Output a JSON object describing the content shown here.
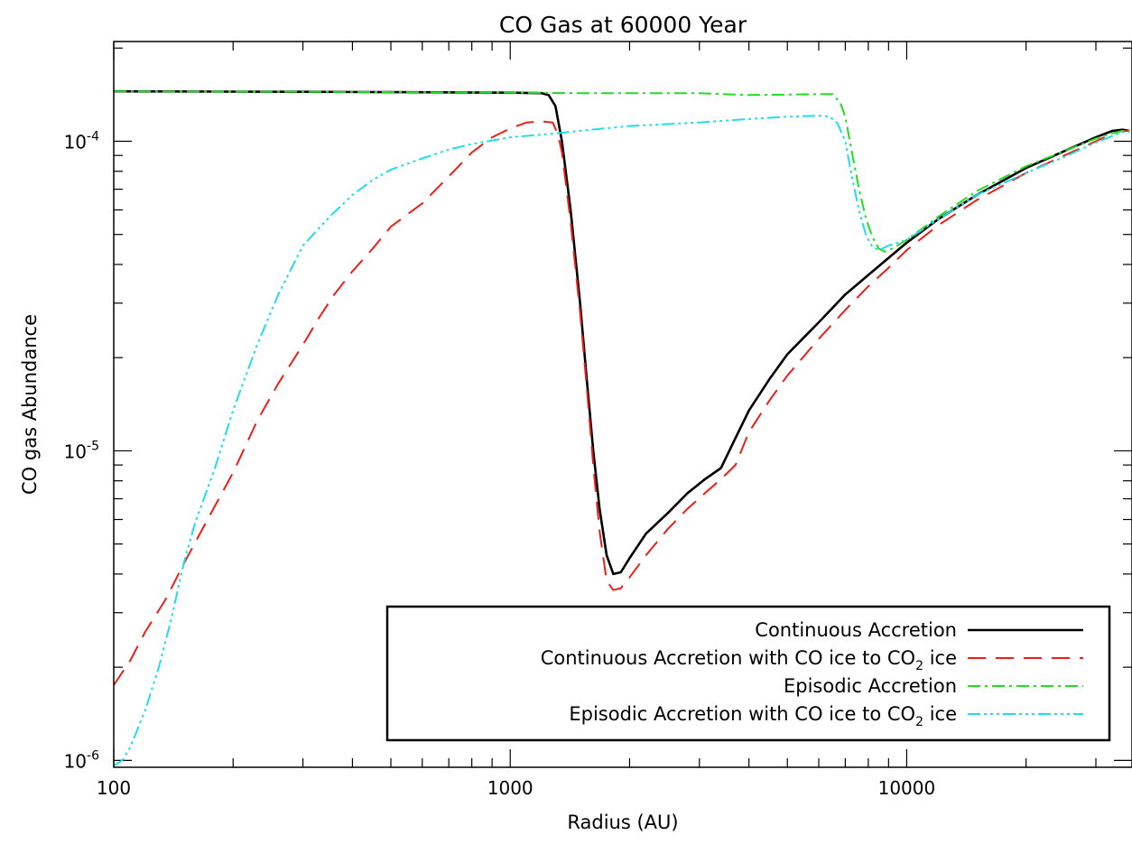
{
  "chart_data": {
    "type": "line",
    "title": "CO Gas at 60000 Year",
    "xlabel": "Radius (AU)",
    "ylabel": "CO gas Abundance",
    "x_scale": "log",
    "y_scale": "log",
    "xlim": [
      100,
      37000
    ],
    "ylim": [
      9.5e-07,
      0.00021
    ],
    "x_ticks": [
      {
        "value": 100,
        "label": "100"
      },
      {
        "value": 1000,
        "label": "1000"
      },
      {
        "value": 10000,
        "label": "10000"
      }
    ],
    "y_ticks": [
      {
        "value": 1e-06,
        "base": "10",
        "exp": "-6"
      },
      {
        "value": 1e-05,
        "base": "10",
        "exp": "-5"
      },
      {
        "value": 0.0001,
        "base": "10",
        "exp": "-4"
      }
    ],
    "grid": false,
    "legend_position": "bottom-right",
    "series": [
      {
        "name": "Continuous Accretion",
        "name_parts": [
          "Continuous Accretion",
          "",
          ""
        ],
        "color": "#000000",
        "dash": "solid",
        "points": [
          [
            100,
            0.000145
          ],
          [
            300,
            0.0001445
          ],
          [
            600,
            0.000144
          ],
          [
            1000,
            0.0001435
          ],
          [
            1200,
            0.000143
          ],
          [
            1250,
            0.000141
          ],
          [
            1300,
            0.00013
          ],
          [
            1350,
            0.0001
          ],
          [
            1420,
            6e-05
          ],
          [
            1500,
            3e-05
          ],
          [
            1560,
            1.7e-05
          ],
          [
            1620,
            1e-05
          ],
          [
            1680,
            6.5e-06
          ],
          [
            1750,
            4.6e-06
          ],
          [
            1820,
            4e-06
          ],
          [
            1900,
            4.05e-06
          ],
          [
            2000,
            4.5e-06
          ],
          [
            2200,
            5.4e-06
          ],
          [
            2500,
            6.3e-06
          ],
          [
            2800,
            7.3e-06
          ],
          [
            3100,
            8.1e-06
          ],
          [
            3400,
            8.8e-06
          ],
          [
            3700,
            1.1e-05
          ],
          [
            4000,
            1.35e-05
          ],
          [
            4500,
            1.7e-05
          ],
          [
            5000,
            2.05e-05
          ],
          [
            6000,
            2.6e-05
          ],
          [
            7000,
            3.2e-05
          ],
          [
            8000,
            3.7e-05
          ],
          [
            9000,
            4.2e-05
          ],
          [
            10000,
            4.7e-05
          ],
          [
            12000,
            5.6e-05
          ],
          [
            15000,
            6.7e-05
          ],
          [
            20000,
            8.2e-05
          ],
          [
            25000,
            9.3e-05
          ],
          [
            30000,
            0.000103
          ],
          [
            33000,
            0.000108
          ],
          [
            35000,
            0.000109
          ],
          [
            36500,
            0.000108
          ]
        ]
      },
      {
        "name": "Continuous Accretion with CO ice to CO2 ice",
        "name_parts": [
          "Continuous Accretion with CO ice to CO",
          "2",
          " ice"
        ],
        "color": "#e8201a",
        "dash": "20,11",
        "points": [
          [
            100,
            1.75e-06
          ],
          [
            110,
            2.1e-06
          ],
          [
            120,
            2.6e-06
          ],
          [
            135,
            3.3e-06
          ],
          [
            150,
            4.3e-06
          ],
          [
            170,
            5.8e-06
          ],
          [
            200,
            8.5e-06
          ],
          [
            230,
            1.25e-05
          ],
          [
            260,
            1.65e-05
          ],
          [
            300,
            2.2e-05
          ],
          [
            330,
            2.7e-05
          ],
          [
            360,
            3.2e-05
          ],
          [
            400,
            3.8e-05
          ],
          [
            450,
            4.5e-05
          ],
          [
            500,
            5.3e-05
          ],
          [
            600,
            6.3e-05
          ],
          [
            700,
            7.7e-05
          ],
          [
            800,
            9.2e-05
          ],
          [
            900,
            0.000103
          ],
          [
            1000,
            0.00011
          ],
          [
            1100,
            0.000115
          ],
          [
            1200,
            0.000116
          ],
          [
            1280,
            0.000115
          ],
          [
            1320,
            0.000105
          ],
          [
            1350,
            9.2e-05
          ],
          [
            1420,
            5.5e-05
          ],
          [
            1500,
            2.8e-05
          ],
          [
            1560,
            1.6e-05
          ],
          [
            1620,
            9e-06
          ],
          [
            1680,
            5.5e-06
          ],
          [
            1750,
            3.8e-06
          ],
          [
            1820,
            3.55e-06
          ],
          [
            1900,
            3.6e-06
          ],
          [
            2000,
            3.9e-06
          ],
          [
            2200,
            4.6e-06
          ],
          [
            2500,
            5.6e-06
          ],
          [
            2800,
            6.5e-06
          ],
          [
            3100,
            7.3e-06
          ],
          [
            3400,
            8.1e-06
          ],
          [
            3700,
            9e-06
          ],
          [
            4000,
            1.15e-05
          ],
          [
            4500,
            1.45e-05
          ],
          [
            5000,
            1.75e-05
          ],
          [
            6000,
            2.3e-05
          ],
          [
            7000,
            2.85e-05
          ],
          [
            8000,
            3.4e-05
          ],
          [
            9000,
            3.9e-05
          ],
          [
            10000,
            4.45e-05
          ],
          [
            12000,
            5.35e-05
          ],
          [
            15000,
            6.45e-05
          ],
          [
            20000,
            7.9e-05
          ],
          [
            25000,
            9e-05
          ],
          [
            30000,
            0.0001
          ],
          [
            33000,
            0.000106
          ],
          [
            35000,
            0.000108
          ],
          [
            36500,
            0.000108
          ]
        ]
      },
      {
        "name": "Episodic Accretion",
        "name_parts": [
          "Episodic Accretion",
          "",
          ""
        ],
        "color": "#22dd22",
        "dash": "14,5,3,5",
        "points": [
          [
            100,
            0.000145
          ],
          [
            300,
            0.0001445
          ],
          [
            600,
            0.000144
          ],
          [
            1000,
            0.0001435
          ],
          [
            1500,
            0.000143
          ],
          [
            2000,
            0.000143
          ],
          [
            3000,
            0.000143
          ],
          [
            4000,
            0.000141
          ],
          [
            5000,
            0.0001415
          ],
          [
            6000,
            0.000142
          ],
          [
            6500,
            0.000142
          ],
          [
            6800,
            0.000133
          ],
          [
            7000,
            0.00012
          ],
          [
            7300,
            9e-05
          ],
          [
            7600,
            6.9e-05
          ],
          [
            7900,
            5.6e-05
          ],
          [
            8200,
            4.9e-05
          ],
          [
            8500,
            4.5e-05
          ],
          [
            8800,
            4.4e-05
          ],
          [
            9200,
            4.5e-05
          ],
          [
            10000,
            4.8e-05
          ],
          [
            12000,
            5.7e-05
          ],
          [
            15000,
            6.9e-05
          ],
          [
            20000,
            8.3e-05
          ],
          [
            25000,
            9.3e-05
          ],
          [
            30000,
            0.000102
          ],
          [
            33000,
            0.000106
          ],
          [
            35000,
            0.000108
          ],
          [
            36500,
            0.000108
          ]
        ]
      },
      {
        "name": "Episodic Accretion with CO ice to CO2 ice",
        "name_parts": [
          "Episodic Accretion with CO ice to CO",
          "2",
          " ice"
        ],
        "color": "#22dde8",
        "dash": "14,4,3,4,3,4,3,4",
        "points": [
          [
            100,
            9.6e-07
          ],
          [
            105,
            1e-06
          ],
          [
            110,
            1.1e-06
          ],
          [
            120,
            1.45e-06
          ],
          [
            130,
            2e-06
          ],
          [
            140,
            2.9e-06
          ],
          [
            150,
            4.3e-06
          ],
          [
            160,
            5.8e-06
          ],
          [
            180,
            8.8e-06
          ],
          [
            200,
            1.35e-05
          ],
          [
            230,
            2.2e-05
          ],
          [
            260,
            3.2e-05
          ],
          [
            300,
            4.6e-05
          ],
          [
            350,
            5.7e-05
          ],
          [
            400,
            6.7e-05
          ],
          [
            450,
            7.5e-05
          ],
          [
            500,
            8.1e-05
          ],
          [
            600,
            8.8e-05
          ],
          [
            700,
            9.4e-05
          ],
          [
            800,
            9.8e-05
          ],
          [
            1000,
            0.000103
          ],
          [
            1300,
            0.000106
          ],
          [
            1600,
            0.000109
          ],
          [
            2000,
            0.000112
          ],
          [
            3000,
            0.000115
          ],
          [
            4000,
            0.000118
          ],
          [
            5000,
            0.00012
          ],
          [
            6000,
            0.000121
          ],
          [
            6400,
            0.00012
          ],
          [
            6700,
            0.000114
          ],
          [
            7000,
            0.0001
          ],
          [
            7300,
            7.5e-05
          ],
          [
            7600,
            5.9e-05
          ],
          [
            7900,
            4.95e-05
          ],
          [
            8200,
            4.55e-05
          ],
          [
            8500,
            4.45e-05
          ],
          [
            9000,
            4.6e-05
          ],
          [
            10000,
            4.8e-05
          ],
          [
            12000,
            5.6e-05
          ],
          [
            15000,
            6.7e-05
          ],
          [
            20000,
            7.9e-05
          ],
          [
            25000,
            8.9e-05
          ],
          [
            30000,
            9.9e-05
          ],
          [
            33000,
            0.000104
          ],
          [
            35000,
            0.000107
          ],
          [
            36500,
            0.000107
          ]
        ]
      }
    ]
  }
}
